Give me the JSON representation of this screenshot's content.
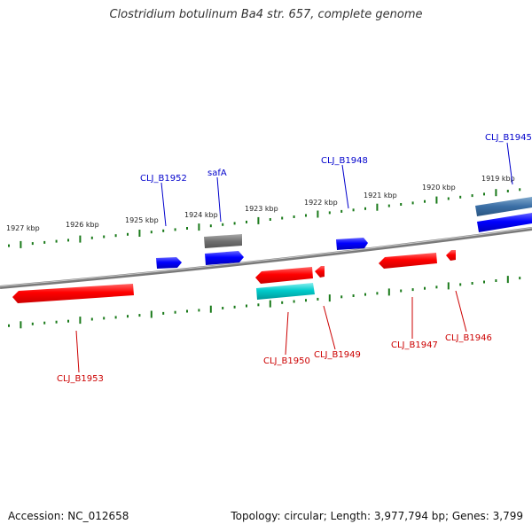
{
  "title": "Clostridium botulinum Ba4 str. 657, complete genome",
  "accession_label": "Accession: NC_012658",
  "topology_label": "Topology: circular; Length: 3,977,794 bp; Genes: 3,799",
  "colors": {
    "forward_gene": "#0000ff",
    "reverse_gene": "#ff0000",
    "other_forward": "#3a6ea5",
    "other_reverse": "#00cccc",
    "grey_feature": "#707070",
    "backbone": "#808080",
    "tick": "#1a7a1a",
    "forward_label": "#0000cc",
    "reverse_label": "#cc0000"
  },
  "scale_labels": [
    "1927 kbp",
    "1926 kbp",
    "1925 kbp",
    "1924 kbp",
    "1923 kbp",
    "1922 kbp",
    "1921 kbp",
    "1920 kbp",
    "1919 kbp"
  ],
  "forward_gene_labels": [
    "CLJ_B1952",
    "safA",
    "CLJ_B1948",
    "CLJ_B1945"
  ],
  "reverse_gene_labels": [
    "CLJ_B1953",
    "CLJ_B1950",
    "CLJ_B1949",
    "CLJ_B1947",
    "CLJ_B1946"
  ]
}
